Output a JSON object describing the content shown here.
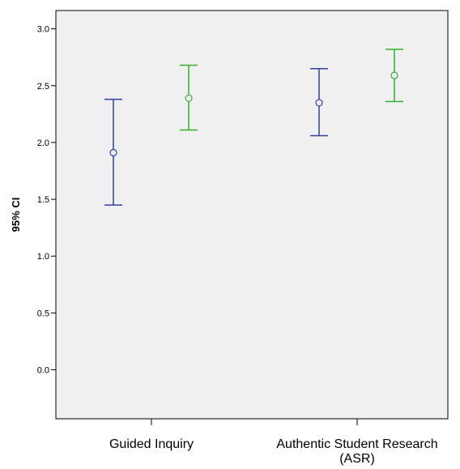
{
  "chart_data": {
    "type": "errorbar",
    "ylabel": "95% CI",
    "xlabel": "",
    "ylim": [
      -0.45,
      3.2
    ],
    "yticks": [
      "0.0",
      "0.5",
      "1.0",
      "1.5",
      "2.0",
      "2.5",
      "3.0"
    ],
    "ytick_values": [
      0.0,
      0.5,
      1.0,
      1.5,
      2.0,
      2.5,
      3.0
    ],
    "grid": false,
    "categories": [
      "Guided Inquiry",
      [
        "Authentic Student Research",
        "(ASR)"
      ]
    ],
    "series": [
      {
        "color": "#3340a0",
        "mean": [
          1.91,
          2.35
        ],
        "lower": [
          1.45,
          2.06
        ],
        "upper": [
          2.38,
          2.65
        ]
      },
      {
        "color": "#33b033",
        "mean": [
          2.39,
          2.59
        ],
        "lower": [
          2.11,
          2.36
        ],
        "upper": [
          2.68,
          2.82
        ]
      }
    ]
  }
}
